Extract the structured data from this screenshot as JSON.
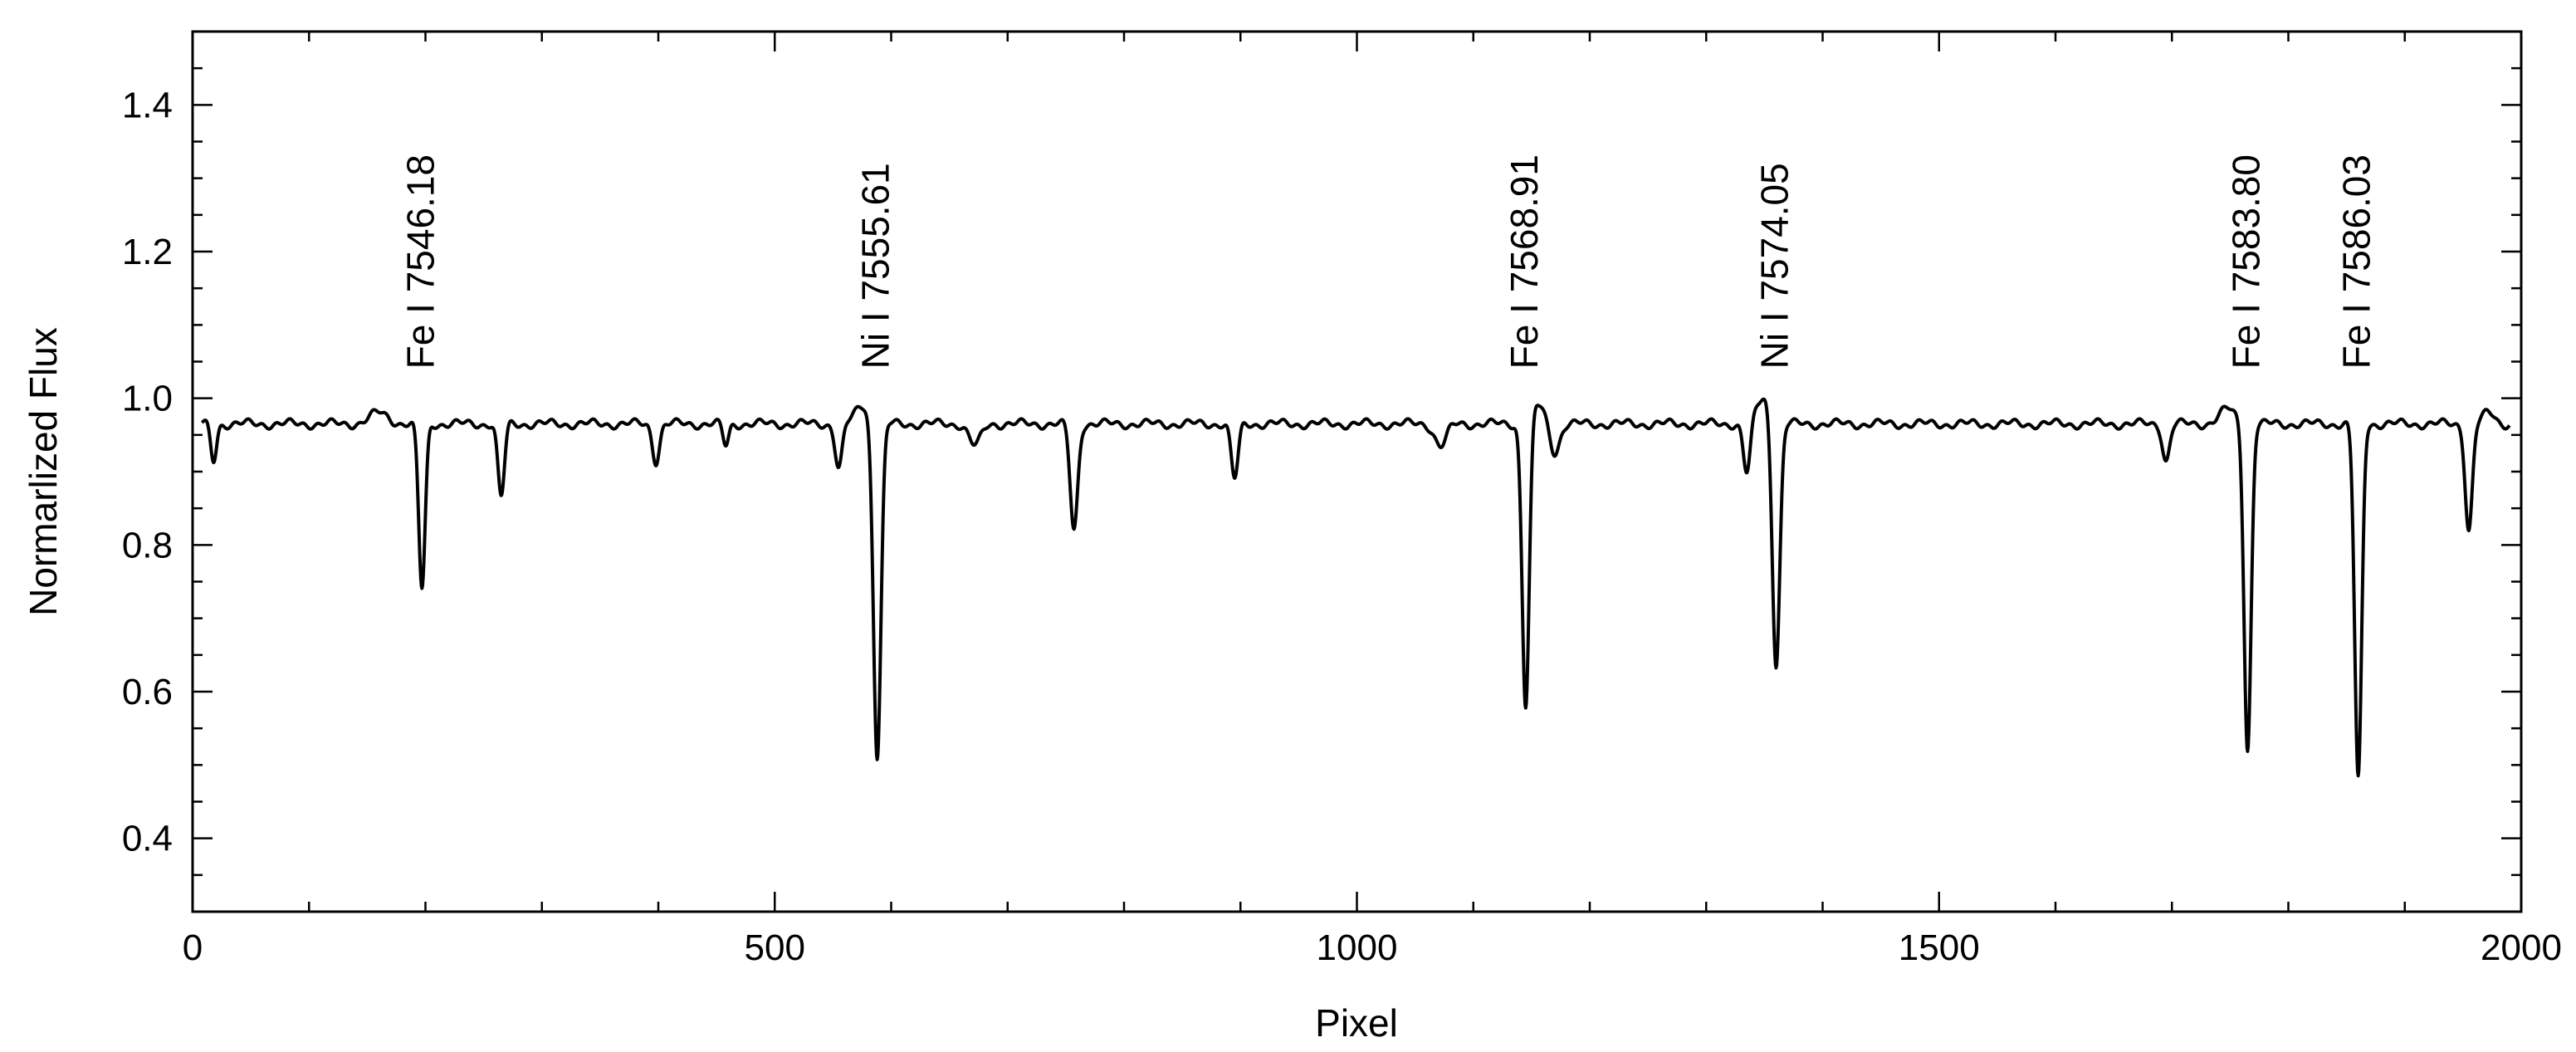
{
  "chart_data": {
    "type": "line",
    "title": "",
    "xlabel": "Pixel",
    "ylabel": "Normarlized Flux",
    "xlim": [
      0,
      2000
    ],
    "ylim": [
      0.3,
      1.5
    ],
    "x_ticks": [
      0,
      500,
      1000,
      1500,
      2000
    ],
    "x_tick_labels": [
      "0",
      "500",
      "1000",
      "1500",
      "2000"
    ],
    "y_ticks": [
      0.4,
      0.6,
      0.8,
      1.0,
      1.2,
      1.4
    ],
    "y_tick_labels": [
      "0.4",
      "0.6",
      "0.8",
      "1.0",
      "1.2",
      "1.4"
    ],
    "grid": false,
    "line_color": "#000000",
    "continuum": 0.965,
    "line_labels": [
      {
        "text": "Fe I 7546.18",
        "x": 197
      },
      {
        "text": "Ni I 7555.61",
        "x": 588
      },
      {
        "text": "Fe I 7568.91",
        "x": 1145
      },
      {
        "text": "Ni I 7574.05",
        "x": 1360
      },
      {
        "text": "Fe I 7583.80",
        "x": 1765
      },
      {
        "text": "Fe I 7586.03",
        "x": 1860
      }
    ],
    "absorption_lines": [
      {
        "x": 18,
        "depth": 0.05,
        "width": 2.5
      },
      {
        "x": 197,
        "depth": 0.225,
        "width": 2.8
      },
      {
        "x": 265,
        "depth": 0.1,
        "width": 2.8
      },
      {
        "x": 398,
        "depth": 0.05,
        "width": 3.0
      },
      {
        "x": 458,
        "depth": 0.03,
        "width": 2.5
      },
      {
        "x": 555,
        "depth": 0.06,
        "width": 3.0
      },
      {
        "x": 588,
        "depth": 0.455,
        "width": 3.2
      },
      {
        "x": 672,
        "depth": 0.03,
        "width": 5.0
      },
      {
        "x": 757,
        "depth": 0.145,
        "width": 3.2
      },
      {
        "x": 895,
        "depth": 0.075,
        "width": 3.0
      },
      {
        "x": 1072,
        "depth": 0.03,
        "width": 5.0
      },
      {
        "x": 1145,
        "depth": 0.39,
        "width": 3.0
      },
      {
        "x": 1170,
        "depth": 0.04,
        "width": 4.0
      },
      {
        "x": 1335,
        "depth": 0.07,
        "width": 3.0
      },
      {
        "x": 1360,
        "depth": 0.34,
        "width": 3.2
      },
      {
        "x": 1695,
        "depth": 0.05,
        "width": 3.0
      },
      {
        "x": 1765,
        "depth": 0.445,
        "width": 3.0
      },
      {
        "x": 1860,
        "depth": 0.485,
        "width": 3.0
      },
      {
        "x": 1955,
        "depth": 0.145,
        "width": 3.0
      }
    ],
    "emission_bumps": [
      {
        "x": 160,
        "height": 0.015,
        "width": 8
      },
      {
        "x": 575,
        "height": 0.025,
        "width": 6
      },
      {
        "x": 1155,
        "height": 0.025,
        "width": 6
      },
      {
        "x": 1350,
        "height": 0.035,
        "width": 7
      },
      {
        "x": 1748,
        "height": 0.02,
        "width": 7
      },
      {
        "x": 1972,
        "height": 0.015,
        "width": 5
      }
    ]
  }
}
